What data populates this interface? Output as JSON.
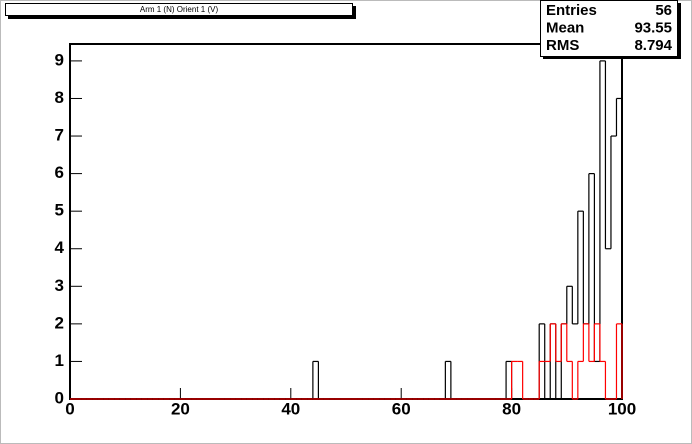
{
  "chart_data": {
    "type": "histogram",
    "title": "Arm 1 (N) Orient 1 (V)",
    "bins": [
      0,
      1,
      2,
      3,
      4,
      5,
      6,
      7,
      8,
      9,
      10,
      11,
      12,
      13,
      14,
      15,
      16,
      17,
      18,
      19,
      20,
      21,
      22,
      23,
      24,
      25,
      26,
      27,
      28,
      29,
      30,
      31,
      32,
      33,
      34,
      35,
      36,
      37,
      38,
      39,
      40,
      41,
      42,
      43,
      44,
      45,
      46,
      47,
      48,
      49,
      50,
      51,
      52,
      53,
      54,
      55,
      56,
      57,
      58,
      59,
      60,
      61,
      62,
      63,
      64,
      65,
      66,
      67,
      68,
      69,
      70,
      71,
      72,
      73,
      74,
      75,
      76,
      77,
      78,
      79,
      80,
      81,
      82,
      83,
      84,
      85,
      86,
      87,
      88,
      89,
      90,
      91,
      92,
      93,
      94,
      95,
      96,
      97,
      98,
      99,
      100
    ],
    "series": [
      {
        "color": "#000000",
        "values": [
          0,
          0,
          0,
          0,
          0,
          0,
          0,
          0,
          0,
          0,
          0,
          0,
          0,
          0,
          0,
          0,
          0,
          0,
          0,
          0,
          0,
          0,
          0,
          0,
          0,
          0,
          0,
          0,
          0,
          0,
          0,
          0,
          0,
          0,
          0,
          0,
          0,
          0,
          0,
          0,
          0,
          0,
          0,
          0,
          1,
          0,
          0,
          0,
          0,
          0,
          0,
          0,
          0,
          0,
          0,
          0,
          0,
          0,
          0,
          0,
          0,
          0,
          0,
          0,
          0,
          0,
          0,
          0,
          1,
          0,
          0,
          0,
          0,
          0,
          0,
          0,
          0,
          0,
          0,
          1,
          0,
          0,
          0,
          0,
          0,
          2,
          0,
          2,
          0,
          2,
          3,
          2,
          5,
          2,
          6,
          1,
          9,
          4,
          7,
          8
        ]
      },
      {
        "color": "#ff0000",
        "values": [
          0,
          0,
          0,
          0,
          0,
          0,
          0,
          0,
          0,
          0,
          0,
          0,
          0,
          0,
          0,
          0,
          0,
          0,
          0,
          0,
          0,
          0,
          0,
          0,
          0,
          0,
          0,
          0,
          0,
          0,
          0,
          0,
          0,
          0,
          0,
          0,
          0,
          0,
          0,
          0,
          0,
          0,
          0,
          0,
          0,
          0,
          0,
          0,
          0,
          0,
          0,
          0,
          0,
          0,
          0,
          0,
          0,
          0,
          0,
          0,
          0,
          0,
          0,
          0,
          0,
          0,
          0,
          0,
          0,
          0,
          0,
          0,
          0,
          0,
          0,
          0,
          0,
          0,
          0,
          0,
          1,
          1,
          0,
          0,
          0,
          1,
          1,
          2,
          1,
          2,
          1,
          0,
          1,
          2,
          1,
          2,
          1,
          0,
          0,
          2
        ]
      }
    ],
    "xlim": [
      0,
      100
    ],
    "xticks": [
      0,
      20,
      40,
      60,
      80,
      100
    ],
    "ylim": [
      0,
      9.45
    ],
    "yticks": [
      0,
      1,
      2,
      3,
      4,
      5,
      6,
      7,
      8,
      9
    ],
    "stats": [
      {
        "label": "Entries",
        "value": 56
      },
      {
        "label": "Mean",
        "value": 93.55
      },
      {
        "label": "RMS",
        "value": 8.794
      }
    ]
  }
}
